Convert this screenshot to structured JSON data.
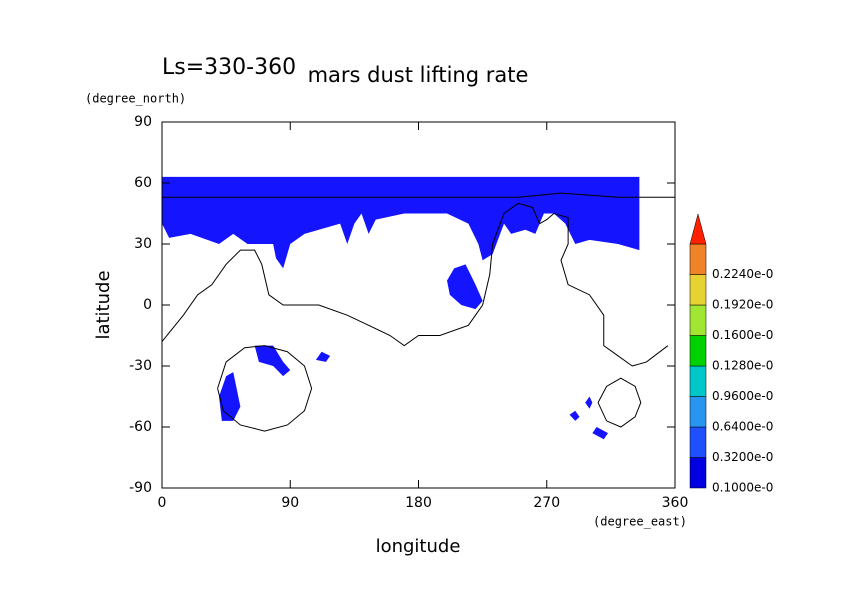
{
  "chart_data": {
    "type": "contour",
    "title": "mars dust lifting rate",
    "annotation": "Ls=330-360",
    "xlabel": "longitude",
    "xunit": "(degree_east)",
    "ylabel": "latitude",
    "yunit": "(degree_north)",
    "xlim": [
      0,
      360
    ],
    "xticks": [
      0,
      90,
      180,
      270,
      360
    ],
    "ylim": [
      -90,
      90
    ],
    "yticks": [
      -90,
      -60,
      -30,
      0,
      30,
      60,
      90
    ],
    "regions": [
      {
        "color": "#1414ff",
        "lon": [
          0,
          335,
          335,
          320,
          300,
          290,
          283,
          275,
          268,
          262,
          255,
          245,
          240,
          232,
          225,
          222,
          215,
          200,
          170,
          150,
          145,
          140,
          135,
          130,
          125,
          100,
          90,
          85,
          80,
          78,
          60,
          50,
          40,
          20,
          5,
          0
        ],
        "lat": [
          63,
          63,
          27,
          30,
          32,
          30,
          40,
          45,
          45,
          35,
          37,
          35,
          40,
          25,
          22,
          30,
          40,
          45,
          45,
          42,
          35,
          45,
          40,
          30,
          40,
          35,
          30,
          18,
          23,
          30,
          30,
          35,
          30,
          35,
          33,
          40
        ]
      },
      {
        "color": "#1414ff",
        "lon": [
          200,
          205,
          213,
          220,
          225,
          220,
          210,
          202
        ],
        "lat": [
          12,
          18,
          20,
          10,
          2,
          -2,
          0,
          5
        ]
      },
      {
        "color": "#1414ff",
        "lon": [
          45,
          50,
          55,
          50,
          42,
          40
        ],
        "lat": [
          -35,
          -33,
          -50,
          -57,
          -57,
          -45
        ]
      },
      {
        "color": "#1414ff",
        "lon": [
          65,
          78,
          85,
          90,
          85,
          78,
          68
        ],
        "lat": [
          -20,
          -20,
          -28,
          -32,
          -35,
          -30,
          -28
        ]
      },
      {
        "color": "#1414ff",
        "lon": [
          112,
          118,
          115,
          108
        ],
        "lat": [
          -23,
          -25,
          -28,
          -27
        ]
      },
      {
        "color": "#1414ff",
        "lon": [
          290,
          293,
          290,
          286
        ],
        "lat": [
          -52,
          -55,
          -57,
          -54
        ]
      },
      {
        "color": "#1414ff",
        "lon": [
          305,
          313,
          310,
          302
        ],
        "lat": [
          -60,
          -63,
          -66,
          -63
        ]
      },
      {
        "color": "#1414ff",
        "lon": [
          300,
          302,
          300,
          297
        ],
        "lat": [
          -45,
          -48,
          -51,
          -48
        ]
      }
    ],
    "lines": [
      {
        "x": [
          0,
          15,
          25,
          35,
          45,
          55,
          65,
          70,
          75,
          85,
          110,
          130,
          145,
          160,
          170,
          180,
          195,
          215,
          225,
          230,
          232,
          240,
          250,
          260,
          265,
          270,
          275,
          285,
          285,
          280,
          285,
          300,
          310,
          310,
          320,
          330,
          340,
          355
        ],
        "y": [
          -18,
          -5,
          5,
          10,
          20,
          27,
          27,
          20,
          5,
          0,
          0,
          -5,
          -10,
          -15,
          -20,
          -15,
          -15,
          -10,
          0,
          15,
          30,
          45,
          50,
          48,
          40,
          42,
          45,
          43,
          30,
          22,
          10,
          5,
          -5,
          -20,
          -25,
          -30,
          -28,
          -20
        ]
      },
      {
        "x": [
          39,
          45,
          58,
          72,
          88,
          100,
          105,
          100,
          88,
          72,
          55,
          43,
          39
        ],
        "y": [
          -41,
          -28,
          -21,
          -20,
          -23,
          -30,
          -41,
          -52,
          -59,
          -62,
          -59,
          -52,
          -41
        ]
      },
      {
        "x": [
          306,
          312,
          322,
          332,
          336,
          332,
          322,
          312,
          306
        ],
        "y": [
          -48,
          -40,
          -36,
          -40,
          -48,
          -55,
          -60,
          -57,
          -48
        ]
      },
      {
        "x": [
          0,
          250,
          280,
          320,
          360
        ],
        "y": [
          53,
          53,
          55,
          53,
          53
        ]
      }
    ],
    "levels": [
      {
        "value": 0.1,
        "label": "0.1000e-0"
      },
      {
        "value": 0.32,
        "label": "0.3200e-0"
      },
      {
        "value": 0.64,
        "label": "0.6400e-0"
      },
      {
        "value": 0.96,
        "label": "0.9600e-0"
      },
      {
        "value": 0.128,
        "label": "0.1280e-0"
      },
      {
        "value": 0.16,
        "label": "0.1600e-0"
      },
      {
        "value": 0.192,
        "label": "0.1920e-0"
      },
      {
        "value": 0.224,
        "label": "0.2240e-0"
      }
    ],
    "level_colors": [
      "#0000e0",
      "#1e50ff",
      "#2896f0",
      "#00c8c8",
      "#00d200",
      "#a0e632",
      "#e6d232",
      "#f08228"
    ],
    "extend_color": "#ff2000"
  }
}
